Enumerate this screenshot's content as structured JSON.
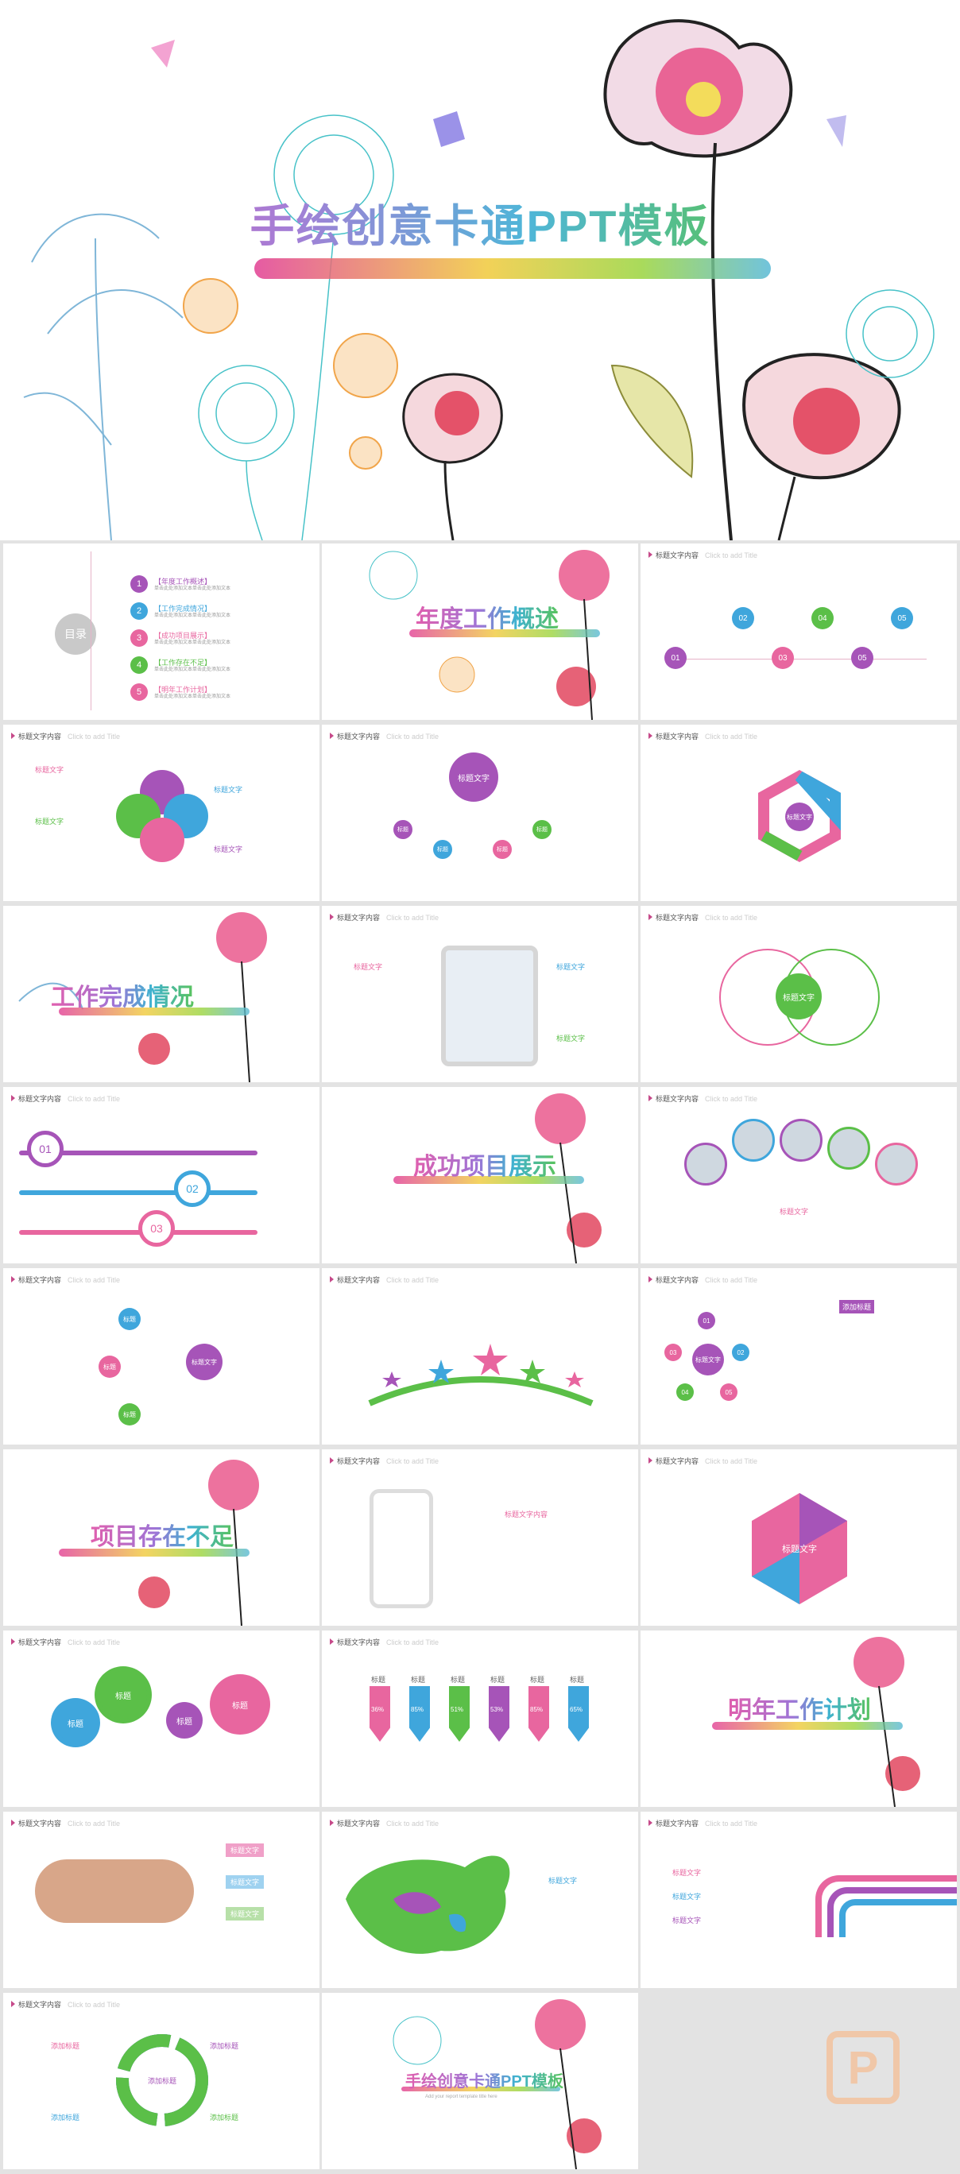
{
  "hero": {
    "title": "手绘创意卡通PPT模板"
  },
  "common": {
    "header": "标题文字内容",
    "header_sub": "Click to add Title",
    "label_title_text": "标题文字",
    "label_title": "标题",
    "label_add_title": "添加标题"
  },
  "slide_toc": {
    "heading": "目录",
    "items": [
      {
        "num": "1",
        "label": "【年度工作概述】"
      },
      {
        "num": "2",
        "label": "【工作完成情况】"
      },
      {
        "num": "3",
        "label": "【成功项目展示】"
      },
      {
        "num": "4",
        "label": "【工作存在不足】"
      },
      {
        "num": "5",
        "label": "【明年工作计划】"
      }
    ],
    "desc": "单击此处添加文本单击此处添加文本"
  },
  "section_titles": {
    "annual": "年度工作概述",
    "completion": "工作完成情况",
    "success": "成功项目展示",
    "shortfall": "项目存在不足",
    "plan": "明年工作计划",
    "closing": "手绘创意卡通PPT模板",
    "closing_sub": "Add your report template title here"
  },
  "numbers": [
    "01",
    "02",
    "03",
    "04",
    "05"
  ],
  "hex_center": "标题\n文字",
  "desc_short": "单击此处添加文本单击此处添加文本",
  "percent_labels": [
    "36%",
    "85%",
    "51%",
    "53%",
    "85%",
    "65%"
  ],
  "colors": {
    "pink": "#e8669f",
    "purple": "#a654b8",
    "blue": "#3fa6dc",
    "green": "#5bbf48",
    "magenta": "#c64a8a"
  }
}
